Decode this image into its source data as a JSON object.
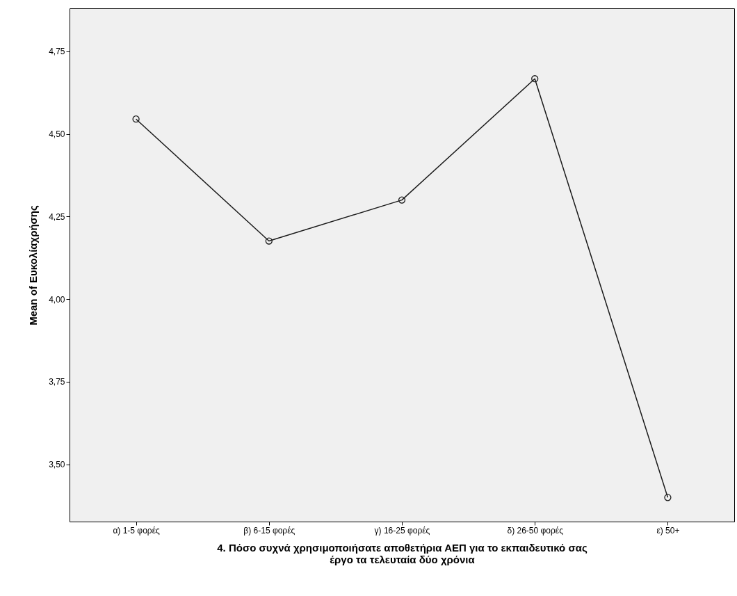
{
  "chart_data": {
    "type": "line",
    "xlabel": "4. Πόσο συχνά χρησιμοποιήσατε αποθετήρια ΑΕΠ για το εκπαιδευτικό σας έργο τα τελευταία δύο χρόνια",
    "ylabel": "Mean of Ευκολίαχρήσης",
    "categories": [
      "α) 1-5 φορές",
      "β) 6-15 φορές",
      "γ) 16-25 φορές",
      "δ) 26-50 φορές",
      "ε) 50+"
    ],
    "series": [
      {
        "color": "#1a1a1a",
        "values": [
          4.545,
          4.176,
          4.3,
          4.667,
          3.4
        ]
      }
    ],
    "ylim": [
      3.327,
      4.88
    ],
    "yticks": [
      {
        "value": 3.5,
        "label": "3,50"
      },
      {
        "value": 3.75,
        "label": "3,75"
      },
      {
        "value": 4.0,
        "label": "4,00"
      },
      {
        "value": 4.25,
        "label": "4,25"
      },
      {
        "value": 4.5,
        "label": "4,50"
      },
      {
        "value": 4.75,
        "label": "4,75"
      }
    ],
    "grid": false,
    "marker": "circle",
    "line_style": "solid"
  }
}
